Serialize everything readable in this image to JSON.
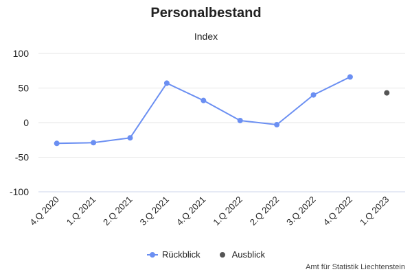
{
  "chart_data": {
    "type": "line",
    "title": "Personalbestand",
    "subtitle": "Index",
    "categories": [
      "4.Q 2020",
      "1.Q 2021",
      "2.Q 2021",
      "3.Q 2021",
      "4.Q 2021",
      "1.Q 2022",
      "2.Q 2022",
      "3.Q 2022",
      "4.Q 2022",
      "1.Q 2023"
    ],
    "y_ticks": [
      100,
      50,
      0,
      -50,
      -100
    ],
    "ylim": [
      -100,
      100
    ],
    "grid": true,
    "legend_position": "bottom-center",
    "series": [
      {
        "name": "Rückblick",
        "color": "#6b8ff2",
        "values": [
          -30,
          -29,
          -22,
          57,
          32,
          3,
          -3,
          40,
          66,
          null
        ]
      },
      {
        "name": "Ausblick",
        "color": "#555555",
        "values": [
          null,
          null,
          null,
          null,
          null,
          null,
          null,
          null,
          null,
          43
        ]
      }
    ],
    "credits": "Amt für Statistik Liechtenstein"
  }
}
